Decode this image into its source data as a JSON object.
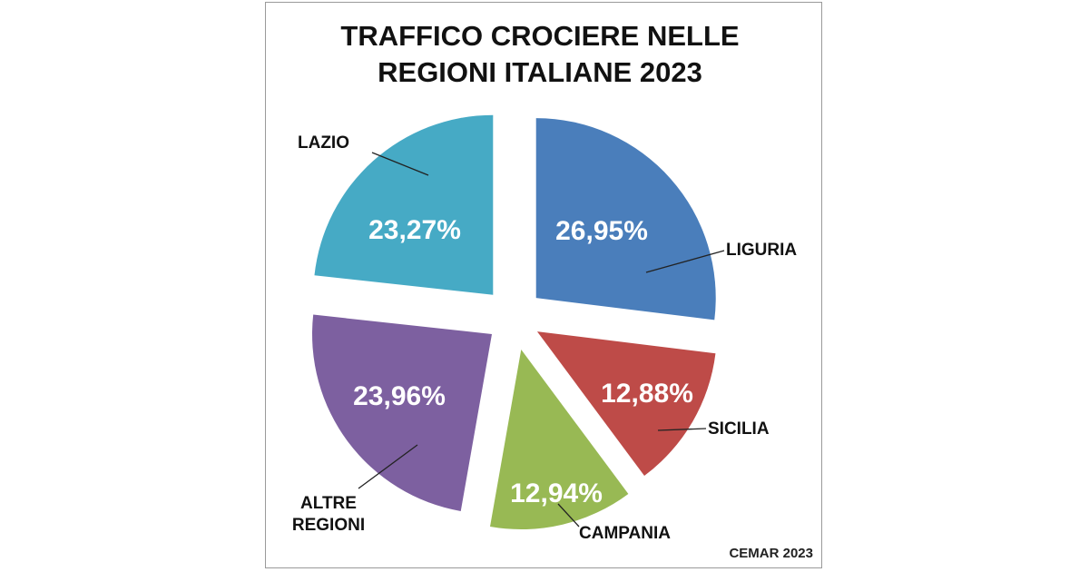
{
  "chart_data": {
    "type": "pie",
    "title_lines": [
      "TRAFFICO CROCIERE NELLE",
      "REGIONI ITALIANE 2023"
    ],
    "exploded": true,
    "start": "12 o'clock, clockwise",
    "slices": [
      {
        "name": "LIGURIA",
        "value": 26.95,
        "label": "26,95%",
        "color": "#4a7ebb"
      },
      {
        "name": "SICILIA",
        "value": 12.88,
        "label": "12,88%",
        "color": "#be4b48"
      },
      {
        "name": "CAMPANIA",
        "value": 12.94,
        "label": "12,94%",
        "color": "#98b954"
      },
      {
        "name": "ALTRE REGIONI",
        "value": 23.96,
        "label": "23,96%",
        "color": "#7d60a0"
      },
      {
        "name": "LAZIO",
        "value": 23.27,
        "label": "23,27%",
        "color": "#46aac5"
      }
    ],
    "source": "CEMAR 2023"
  }
}
